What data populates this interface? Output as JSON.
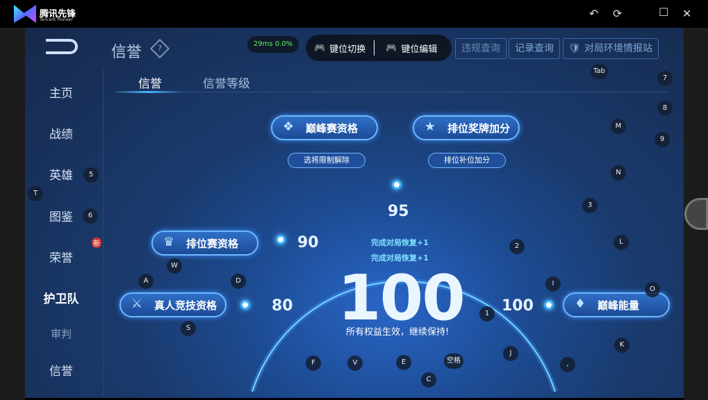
{
  "app": {
    "name": "腾讯先锋",
    "subtitle": "Tencent Pioneer",
    "controls": [
      "undo-icon",
      "refresh-icon",
      "maximize-icon",
      "close-icon"
    ]
  },
  "header": {
    "title": "信誉",
    "help": "?",
    "ping": "29ms",
    "loss": "0.0%"
  },
  "overlay": {
    "switch_label": "键位切换",
    "edit_label": "键位编辑"
  },
  "top_buttons": {
    "hidden1": "违规查询",
    "hidden2": "记录查询",
    "intel": "对局环境情报站"
  },
  "nav": [
    {
      "label": "主页"
    },
    {
      "label": "战绩"
    },
    {
      "label": "英雄"
    },
    {
      "label": "图鉴"
    },
    {
      "label": "荣誉",
      "badge": "新"
    },
    {
      "label": "护卫队"
    },
    {
      "label": "审判"
    },
    {
      "label": "信誉"
    }
  ],
  "tabs": [
    {
      "label": "信誉",
      "active": true
    },
    {
      "label": "信誉等级"
    }
  ],
  "privileges": {
    "peak": "巅峰赛资格",
    "peak_sub": "选将限制解除",
    "rank_medal": "排位奖牌加分",
    "rank_sub": "排位补位加分",
    "ranked": "排位赛资格",
    "real": "真人竞技资格",
    "peak_energy": "巅峰能量"
  },
  "scores": {
    "s80": "80",
    "s90": "90",
    "s95": "95",
    "s100": "100"
  },
  "current": {
    "value": "100",
    "recover1": "完成对局恢复+1",
    "recover2": "完成对局恢复+1",
    "message": "所有权益生效，继续保持!"
  },
  "keys": [
    "Tab",
    "7",
    "8",
    "M",
    "9",
    "N",
    "3",
    "L",
    "2",
    "O",
    "I",
    "K",
    "J",
    ",",
    "1",
    "空格",
    "E",
    "V",
    "F",
    "C",
    "A",
    "D",
    "S",
    "W",
    "T",
    "5",
    "6"
  ],
  "colors": {
    "accent": "#3ab0ff",
    "ping": "#5ef56a"
  }
}
